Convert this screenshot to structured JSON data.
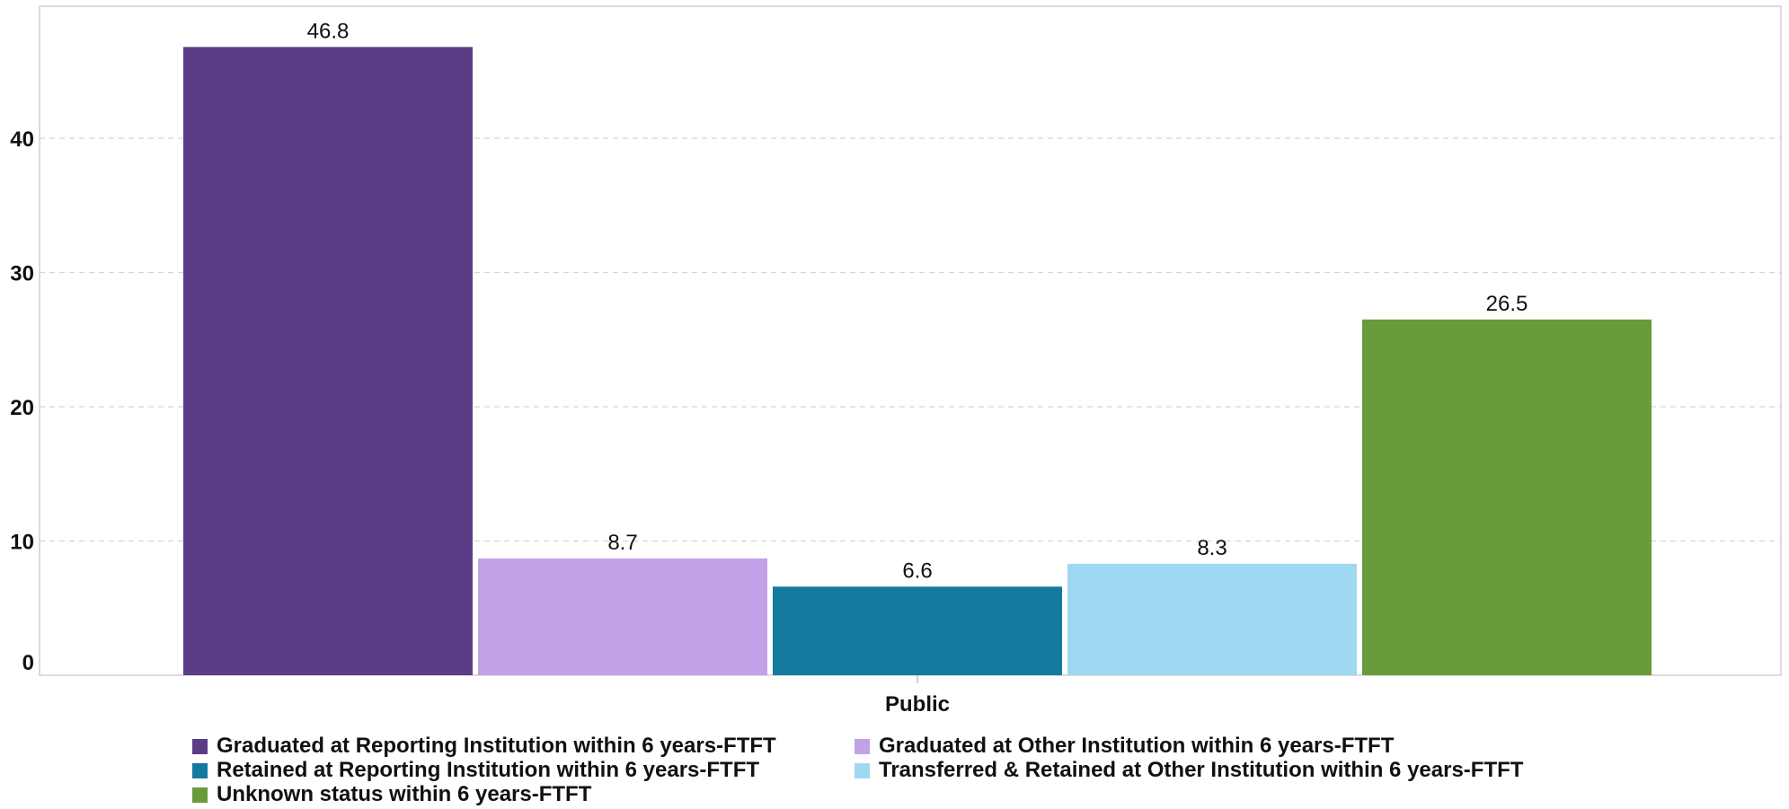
{
  "chart_data": {
    "type": "bar",
    "categories": [
      "Public"
    ],
    "series": [
      {
        "name": "Graduated at Reporting Institution within 6 years-FTFT",
        "color": "#5c3d85",
        "values": [
          46.8
        ],
        "label": "46.8"
      },
      {
        "name": "Graduated at Other Institution within 6 years-FTFT",
        "color": "#c3a1e9",
        "values": [
          8.7
        ],
        "label": "8.7"
      },
      {
        "name": "Retained at Reporting Institution within 6 years-FTFT",
        "color": "#147aa0",
        "values": [
          6.6
        ],
        "label": "6.6"
      },
      {
        "name": "Transferred & Retained at Other Institution within 6 years-FTFT",
        "color": "#9fd8f2",
        "values": [
          8.3
        ],
        "label": "8.3"
      },
      {
        "name": "Unknown status within 6 years-FTFT",
        "color": "#6a9b3b",
        "values": [
          26.5
        ],
        "label": "26.5"
      }
    ],
    "yticks": [
      "0",
      "10",
      "20",
      "30",
      "40"
    ],
    "ylim": [
      0,
      50
    ],
    "grid": true,
    "legend_position": "bottom"
  }
}
